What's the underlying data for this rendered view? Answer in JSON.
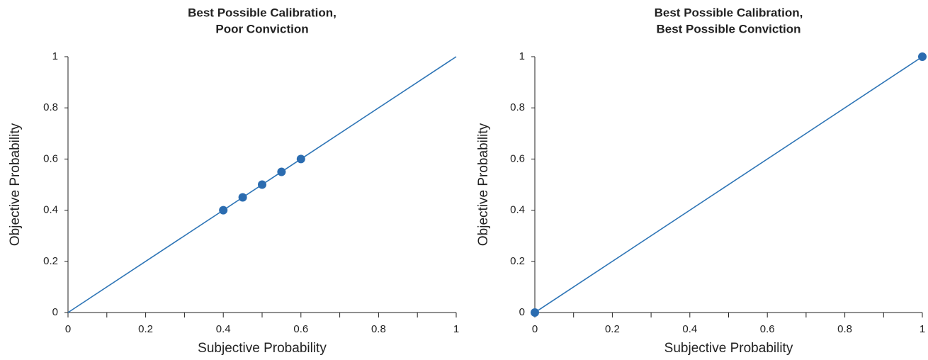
{
  "chart_data": [
    {
      "type": "scatter",
      "title": [
        "Best Possible Calibration,",
        "Poor Conviction"
      ],
      "x_label": "Subjective Probability",
      "y_label": "Objective Probability",
      "series": [
        {
          "color": "#2b6cb0",
          "x": [
            0.4,
            0.45,
            0.5,
            0.55,
            0.6
          ],
          "values": [
            0.4,
            0.45,
            0.5,
            0.55,
            0.6
          ]
        }
      ],
      "line": {
        "color": "#2e75b6",
        "x": [
          0,
          1
        ],
        "values": [
          0,
          1
        ]
      },
      "xlim": [
        0,
        1
      ],
      "ylim": [
        0,
        1
      ],
      "xticks": [
        0,
        0.2,
        0.4,
        0.6,
        0.8,
        1
      ],
      "xminorticks": [
        0.1,
        0.3,
        0.5,
        0.7,
        0.9
      ],
      "yticks": [
        0,
        0.2,
        0.4,
        0.6,
        0.8,
        1
      ]
    },
    {
      "type": "scatter",
      "title": [
        "Best Possible Calibration,",
        "Best Possible Conviction"
      ],
      "x_label": "Subjective Probability",
      "y_label": "Objective Probability",
      "series": [
        {
          "color": "#2b6cb0",
          "x": [
            0,
            1
          ],
          "values": [
            0,
            1
          ]
        }
      ],
      "line": {
        "color": "#2e75b6",
        "x": [
          0,
          1
        ],
        "values": [
          0,
          1
        ]
      },
      "xlim": [
        0,
        1
      ],
      "ylim": [
        0,
        1
      ],
      "xticks": [
        0,
        0.2,
        0.4,
        0.6,
        0.8,
        1
      ],
      "xminorticks": [
        0.1,
        0.3,
        0.5,
        0.7,
        0.9
      ],
      "yticks": [
        0,
        0.2,
        0.4,
        0.6,
        0.8,
        1
      ]
    }
  ]
}
